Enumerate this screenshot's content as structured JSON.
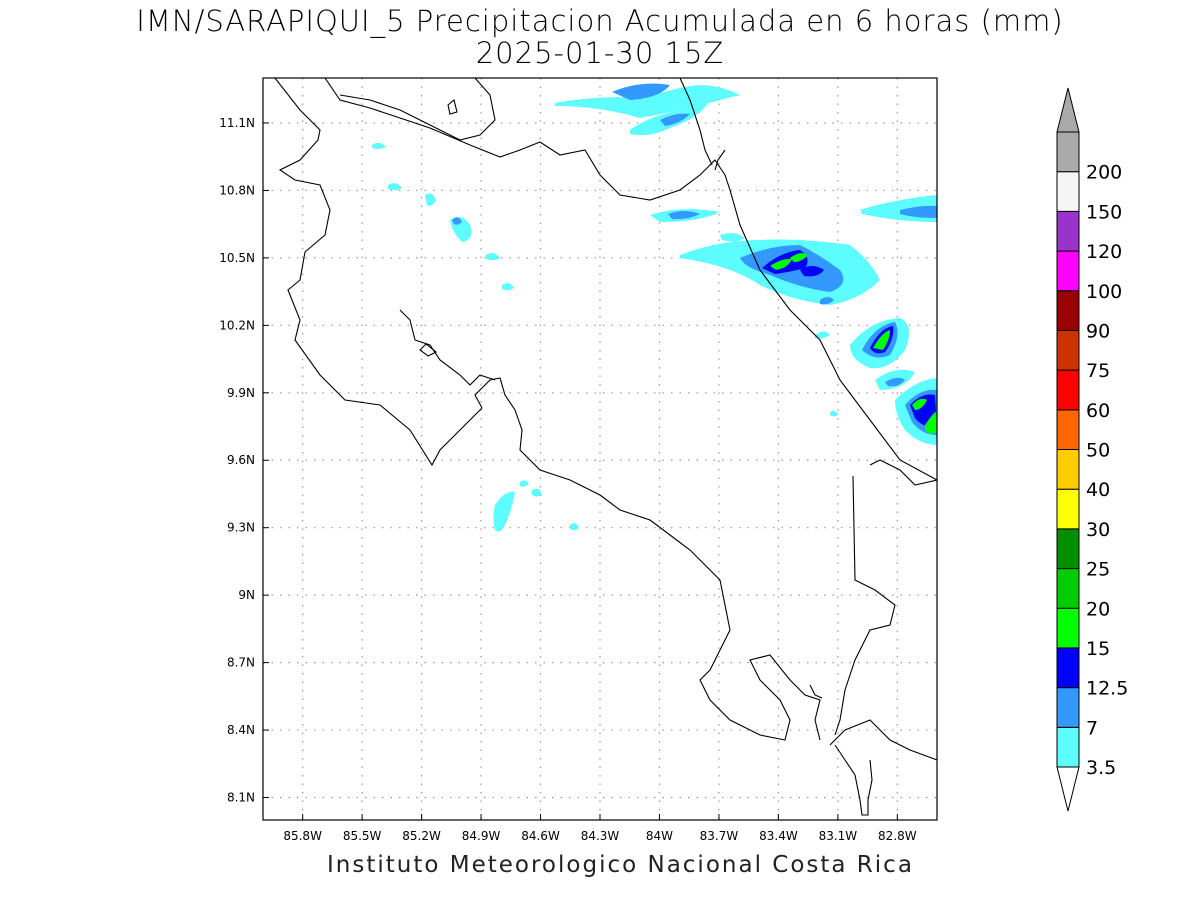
{
  "title": "IMN/SARAPIQUI_5 Precipitacion Acumulada en 6 horas (mm)",
  "subtitle": "2025-01-30 15Z",
  "footer": "Instituto Meteorologico Nacional Costa Rica",
  "map": {
    "lon_range": [
      -86.0,
      -82.6
    ],
    "lat_range": [
      8.0,
      11.3
    ],
    "lon_ticks": [
      "85.8W",
      "85.5W",
      "85.2W",
      "84.9W",
      "84.6W",
      "84.3W",
      "84W",
      "83.7W",
      "83.4W",
      "83.1W",
      "82.8W"
    ],
    "lon_tick_values": [
      -85.8,
      -85.5,
      -85.2,
      -84.9,
      -84.6,
      -84.3,
      -84.0,
      -83.7,
      -83.4,
      -83.1,
      -82.8
    ],
    "lat_ticks": [
      "11.1N",
      "10.8N",
      "10.5N",
      "10.2N",
      "9.9N",
      "9.6N",
      "9.3N",
      "9N",
      "8.7N",
      "8.4N",
      "8.1N"
    ],
    "lat_tick_values": [
      11.1,
      10.8,
      10.5,
      10.2,
      9.9,
      9.6,
      9.3,
      9.0,
      8.7,
      8.4,
      8.1
    ],
    "grid": true
  },
  "colorbar": {
    "labels": [
      "3.5",
      "7",
      "12.5",
      "15",
      "20",
      "25",
      "30",
      "40",
      "50",
      "60",
      "75",
      "90",
      "100",
      "120",
      "150",
      "200"
    ],
    "colors": [
      "#5cfcff",
      "#3399ff",
      "#0000ff",
      "#00ff00",
      "#00cc00",
      "#008f00",
      "#ffff00",
      "#ffcc00",
      "#ff6600",
      "#ff0000",
      "#cc3300",
      "#990000",
      "#ff00ff",
      "#9933cc",
      "#f5f5f5",
      "#aaaaaa"
    ],
    "under_color": "#ffffff",
    "over_color": "#aaaaaa"
  }
}
